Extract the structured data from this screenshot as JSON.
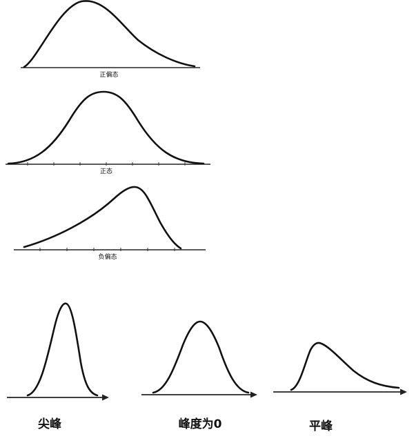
{
  "skew": {
    "positive_label": "正偏态",
    "normal_label": "正态",
    "negative_label": "负偏态"
  },
  "kurtosis": {
    "leptokurtic_label": "尖峰",
    "mesokurtic_label": "峰度为0",
    "platykurtic_label": "平峰"
  }
}
